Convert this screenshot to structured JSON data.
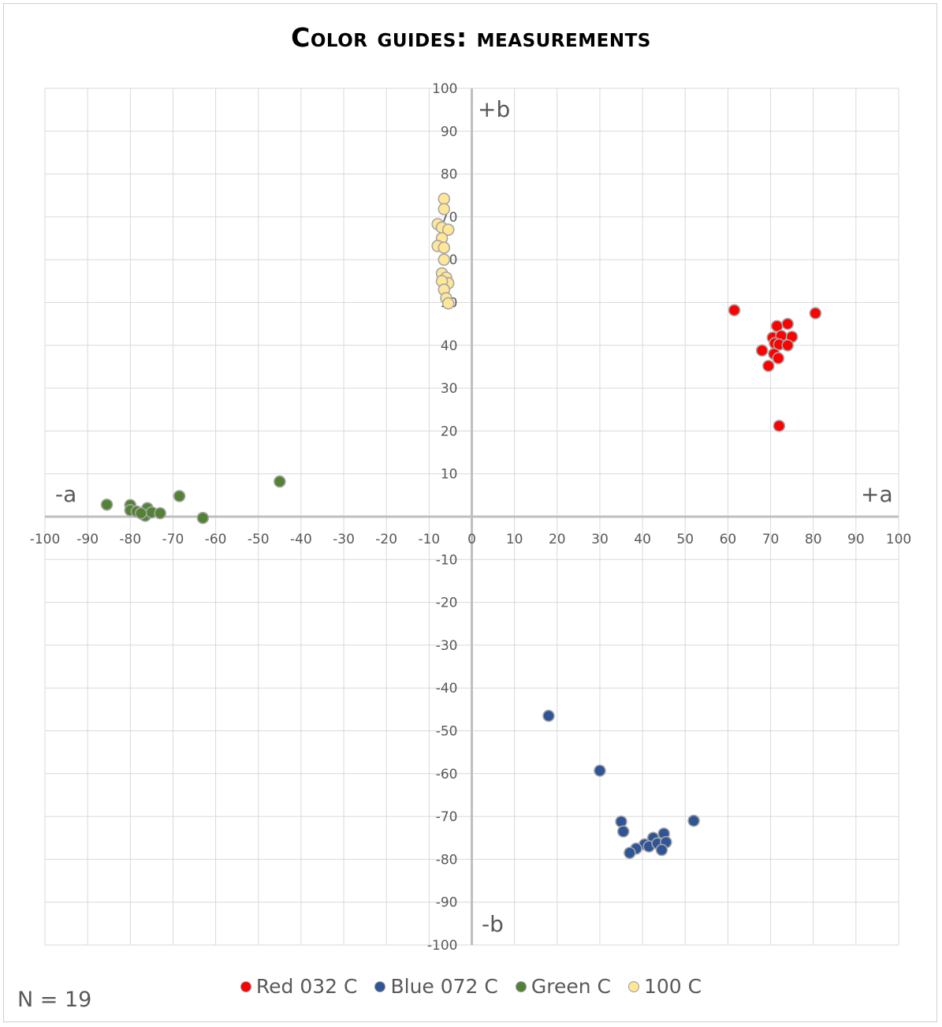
{
  "title": "Color guides: measurements",
  "n_label": "N = 19",
  "chart_data": {
    "type": "scatter",
    "title": "Color guides: measurements",
    "xlim": [
      -100,
      100
    ],
    "ylim": [
      -100,
      100
    ],
    "x_ticks": [
      -100,
      -90,
      -80,
      -70,
      -60,
      -50,
      -40,
      -30,
      -20,
      -10,
      0,
      10,
      20,
      30,
      40,
      50,
      60,
      70,
      80,
      90,
      100
    ],
    "y_ticks": [
      -100,
      -90,
      -80,
      -70,
      -60,
      -50,
      -40,
      -30,
      -20,
      -10,
      0,
      10,
      20,
      30,
      40,
      50,
      60,
      70,
      80,
      90,
      100
    ],
    "grid": true,
    "legend_position": "bottom",
    "axis_annotations": {
      "plus_b": "+b",
      "minus_b": "-b",
      "plus_a": "+a",
      "minus_a": "-a"
    },
    "series": [
      {
        "name": "Red 032 C",
        "color": "#ff0000",
        "points": [
          [
            61.5,
            48.2
          ],
          [
            80.5,
            47.5
          ],
          [
            71.5,
            44.5
          ],
          [
            74,
            45
          ],
          [
            70.5,
            41.8
          ],
          [
            72.5,
            42.2
          ],
          [
            75,
            42
          ],
          [
            71,
            40.5
          ],
          [
            72,
            40.2
          ],
          [
            74,
            40
          ],
          [
            68,
            38.8
          ],
          [
            70.8,
            38
          ],
          [
            71.8,
            37
          ],
          [
            69.5,
            35.2
          ],
          [
            72,
            21.2
          ]
        ]
      },
      {
        "name": "Blue 072 C",
        "color": "#2f5597",
        "points": [
          [
            18,
            -46.5
          ],
          [
            30,
            -59.3
          ],
          [
            35,
            -71.2
          ],
          [
            35.5,
            -73.5
          ],
          [
            52,
            -71
          ],
          [
            45,
            -74
          ],
          [
            42.5,
            -75
          ],
          [
            40.5,
            -76.5
          ],
          [
            41.5,
            -77
          ],
          [
            43.5,
            -76.3
          ],
          [
            45.5,
            -76
          ],
          [
            38.5,
            -77.5
          ],
          [
            37,
            -78.5
          ],
          [
            44.5,
            -77.8
          ]
        ]
      },
      {
        "name": "Green C",
        "color": "#548235",
        "points": [
          [
            -85.5,
            2.8
          ],
          [
            -80,
            2.7
          ],
          [
            -80,
            1.5
          ],
          [
            -78.5,
            1.2
          ],
          [
            -77,
            0.5
          ],
          [
            -76.5,
            0.2
          ],
          [
            -76,
            2
          ],
          [
            -75,
            1
          ],
          [
            -73,
            0.8
          ],
          [
            -68.5,
            4.8
          ],
          [
            -63,
            -0.3
          ],
          [
            -45,
            8.2
          ],
          [
            -77.5,
            0.8
          ]
        ]
      },
      {
        "name": "100 C",
        "color": "#ffe699",
        "points": [
          [
            -6.5,
            74.2
          ],
          [
            -6.5,
            71.8
          ],
          [
            -8,
            68.3
          ],
          [
            -7,
            67.5
          ],
          [
            -5.5,
            67
          ],
          [
            -7,
            65
          ],
          [
            -8,
            63.2
          ],
          [
            -6.5,
            62.8
          ],
          [
            -6.5,
            60
          ],
          [
            -7,
            56.8
          ],
          [
            -6,
            55.8
          ],
          [
            -5.5,
            54.5
          ],
          [
            -7,
            55
          ],
          [
            -6.5,
            53
          ],
          [
            -6,
            51
          ],
          [
            -5.5,
            49.8
          ]
        ]
      }
    ]
  }
}
